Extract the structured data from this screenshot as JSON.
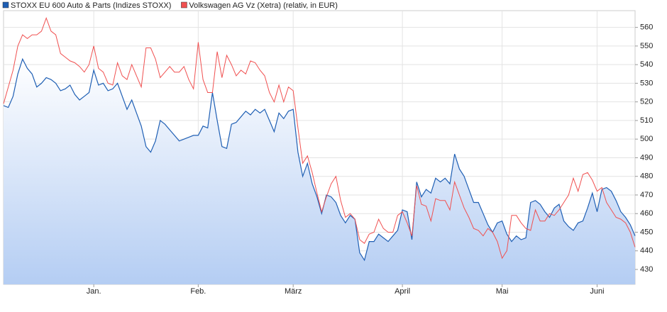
{
  "chart_data": {
    "type": "line",
    "categories": [
      null,
      null,
      null,
      null,
      null,
      null,
      null,
      null,
      null,
      null,
      null,
      null,
      null,
      null,
      null,
      null,
      null,
      null,
      null,
      "Jan.",
      null,
      null,
      null,
      null,
      null,
      null,
      null,
      null,
      null,
      null,
      null,
      null,
      null,
      null,
      null,
      null,
      null,
      null,
      null,
      null,
      null,
      "Feb.",
      null,
      null,
      null,
      null,
      null,
      null,
      null,
      null,
      null,
      null,
      null,
      null,
      null,
      null,
      null,
      null,
      null,
      null,
      null,
      "März",
      null,
      null,
      null,
      null,
      null,
      null,
      null,
      null,
      null,
      null,
      null,
      null,
      null,
      null,
      null,
      null,
      null,
      null,
      null,
      null,
      null,
      null,
      "April",
      null,
      null,
      null,
      null,
      null,
      null,
      null,
      null,
      null,
      null,
      null,
      null,
      null,
      null,
      null,
      null,
      null,
      null,
      null,
      null,
      "Mai",
      null,
      null,
      null,
      null,
      null,
      null,
      null,
      null,
      null,
      null,
      null,
      null,
      null,
      null,
      null,
      null,
      null,
      null,
      null,
      "Juni",
      null,
      null,
      null,
      null,
      null,
      null,
      null,
      null
    ],
    "series": [
      {
        "name": "STOXX EU 600 Auto & Parts (Indizes STOXX)",
        "color": "#1f5fb4",
        "area": true,
        "values": [
          518,
          517,
          523,
          535,
          543,
          538,
          535,
          528,
          530,
          533,
          532,
          530,
          526,
          527,
          529,
          524,
          521,
          523,
          525,
          537,
          529,
          530,
          526,
          527,
          530,
          523,
          516,
          521,
          514,
          507,
          496,
          493,
          499,
          510,
          508,
          505,
          502,
          499,
          500,
          501,
          502,
          502,
          507,
          506,
          525,
          510,
          496,
          495,
          508,
          509,
          512,
          515,
          513,
          516,
          514,
          516,
          510,
          504,
          514,
          511,
          515,
          516,
          493,
          480,
          487,
          476,
          469,
          460,
          470,
          469,
          466,
          459,
          455,
          459,
          457,
          439,
          435,
          445,
          445,
          449,
          447,
          445,
          448,
          451,
          462,
          461,
          446,
          477,
          469,
          473,
          471,
          479,
          477,
          479,
          476,
          492,
          484,
          480,
          473,
          466,
          466,
          460,
          454,
          450,
          455,
          456,
          449,
          445,
          448,
          446,
          447,
          466,
          467,
          465,
          461,
          458,
          463,
          465,
          456,
          453,
          451,
          455,
          456,
          463,
          471,
          461,
          473,
          474,
          472,
          467,
          461,
          458,
          454,
          448
        ]
      },
      {
        "name": "Volkswagen AG Vz (Xetra) (relativ, in EUR)",
        "color": "#f05050",
        "area": false,
        "values": [
          519,
          528,
          537,
          550,
          556,
          554,
          556,
          556,
          558,
          565,
          558,
          556,
          546,
          544,
          542,
          541,
          539,
          536,
          540,
          550,
          538,
          536,
          530,
          529,
          541,
          534,
          532,
          540,
          534,
          528,
          549,
          549,
          543,
          533,
          536,
          539,
          536,
          536,
          539,
          532,
          527,
          552,
          532,
          525,
          525,
          547,
          533,
          545,
          540,
          534,
          537,
          535,
          542,
          541,
          537,
          534,
          525,
          520,
          529,
          520,
          528,
          526,
          506,
          487,
          491,
          482,
          471,
          461,
          469,
          476,
          480,
          467,
          458,
          460,
          457,
          446,
          444,
          449,
          450,
          457,
          452,
          450,
          450,
          459,
          461,
          455,
          448,
          475,
          465,
          464,
          456,
          468,
          467,
          467,
          462,
          477,
          470,
          463,
          458,
          452,
          451,
          448,
          452,
          450,
          445,
          436,
          440,
          459,
          459,
          455,
          452,
          451,
          462,
          456,
          456,
          460,
          459,
          462,
          466,
          470,
          479,
          472,
          481,
          482,
          478,
          472,
          474,
          466,
          462,
          458,
          457,
          455,
          450,
          442
        ]
      }
    ],
    "ylim": [
      422,
      569
    ],
    "yticks": [
      430,
      440,
      450,
      460,
      470,
      480,
      490,
      500,
      510,
      520,
      530,
      540,
      550,
      560
    ],
    "grid": true
  }
}
